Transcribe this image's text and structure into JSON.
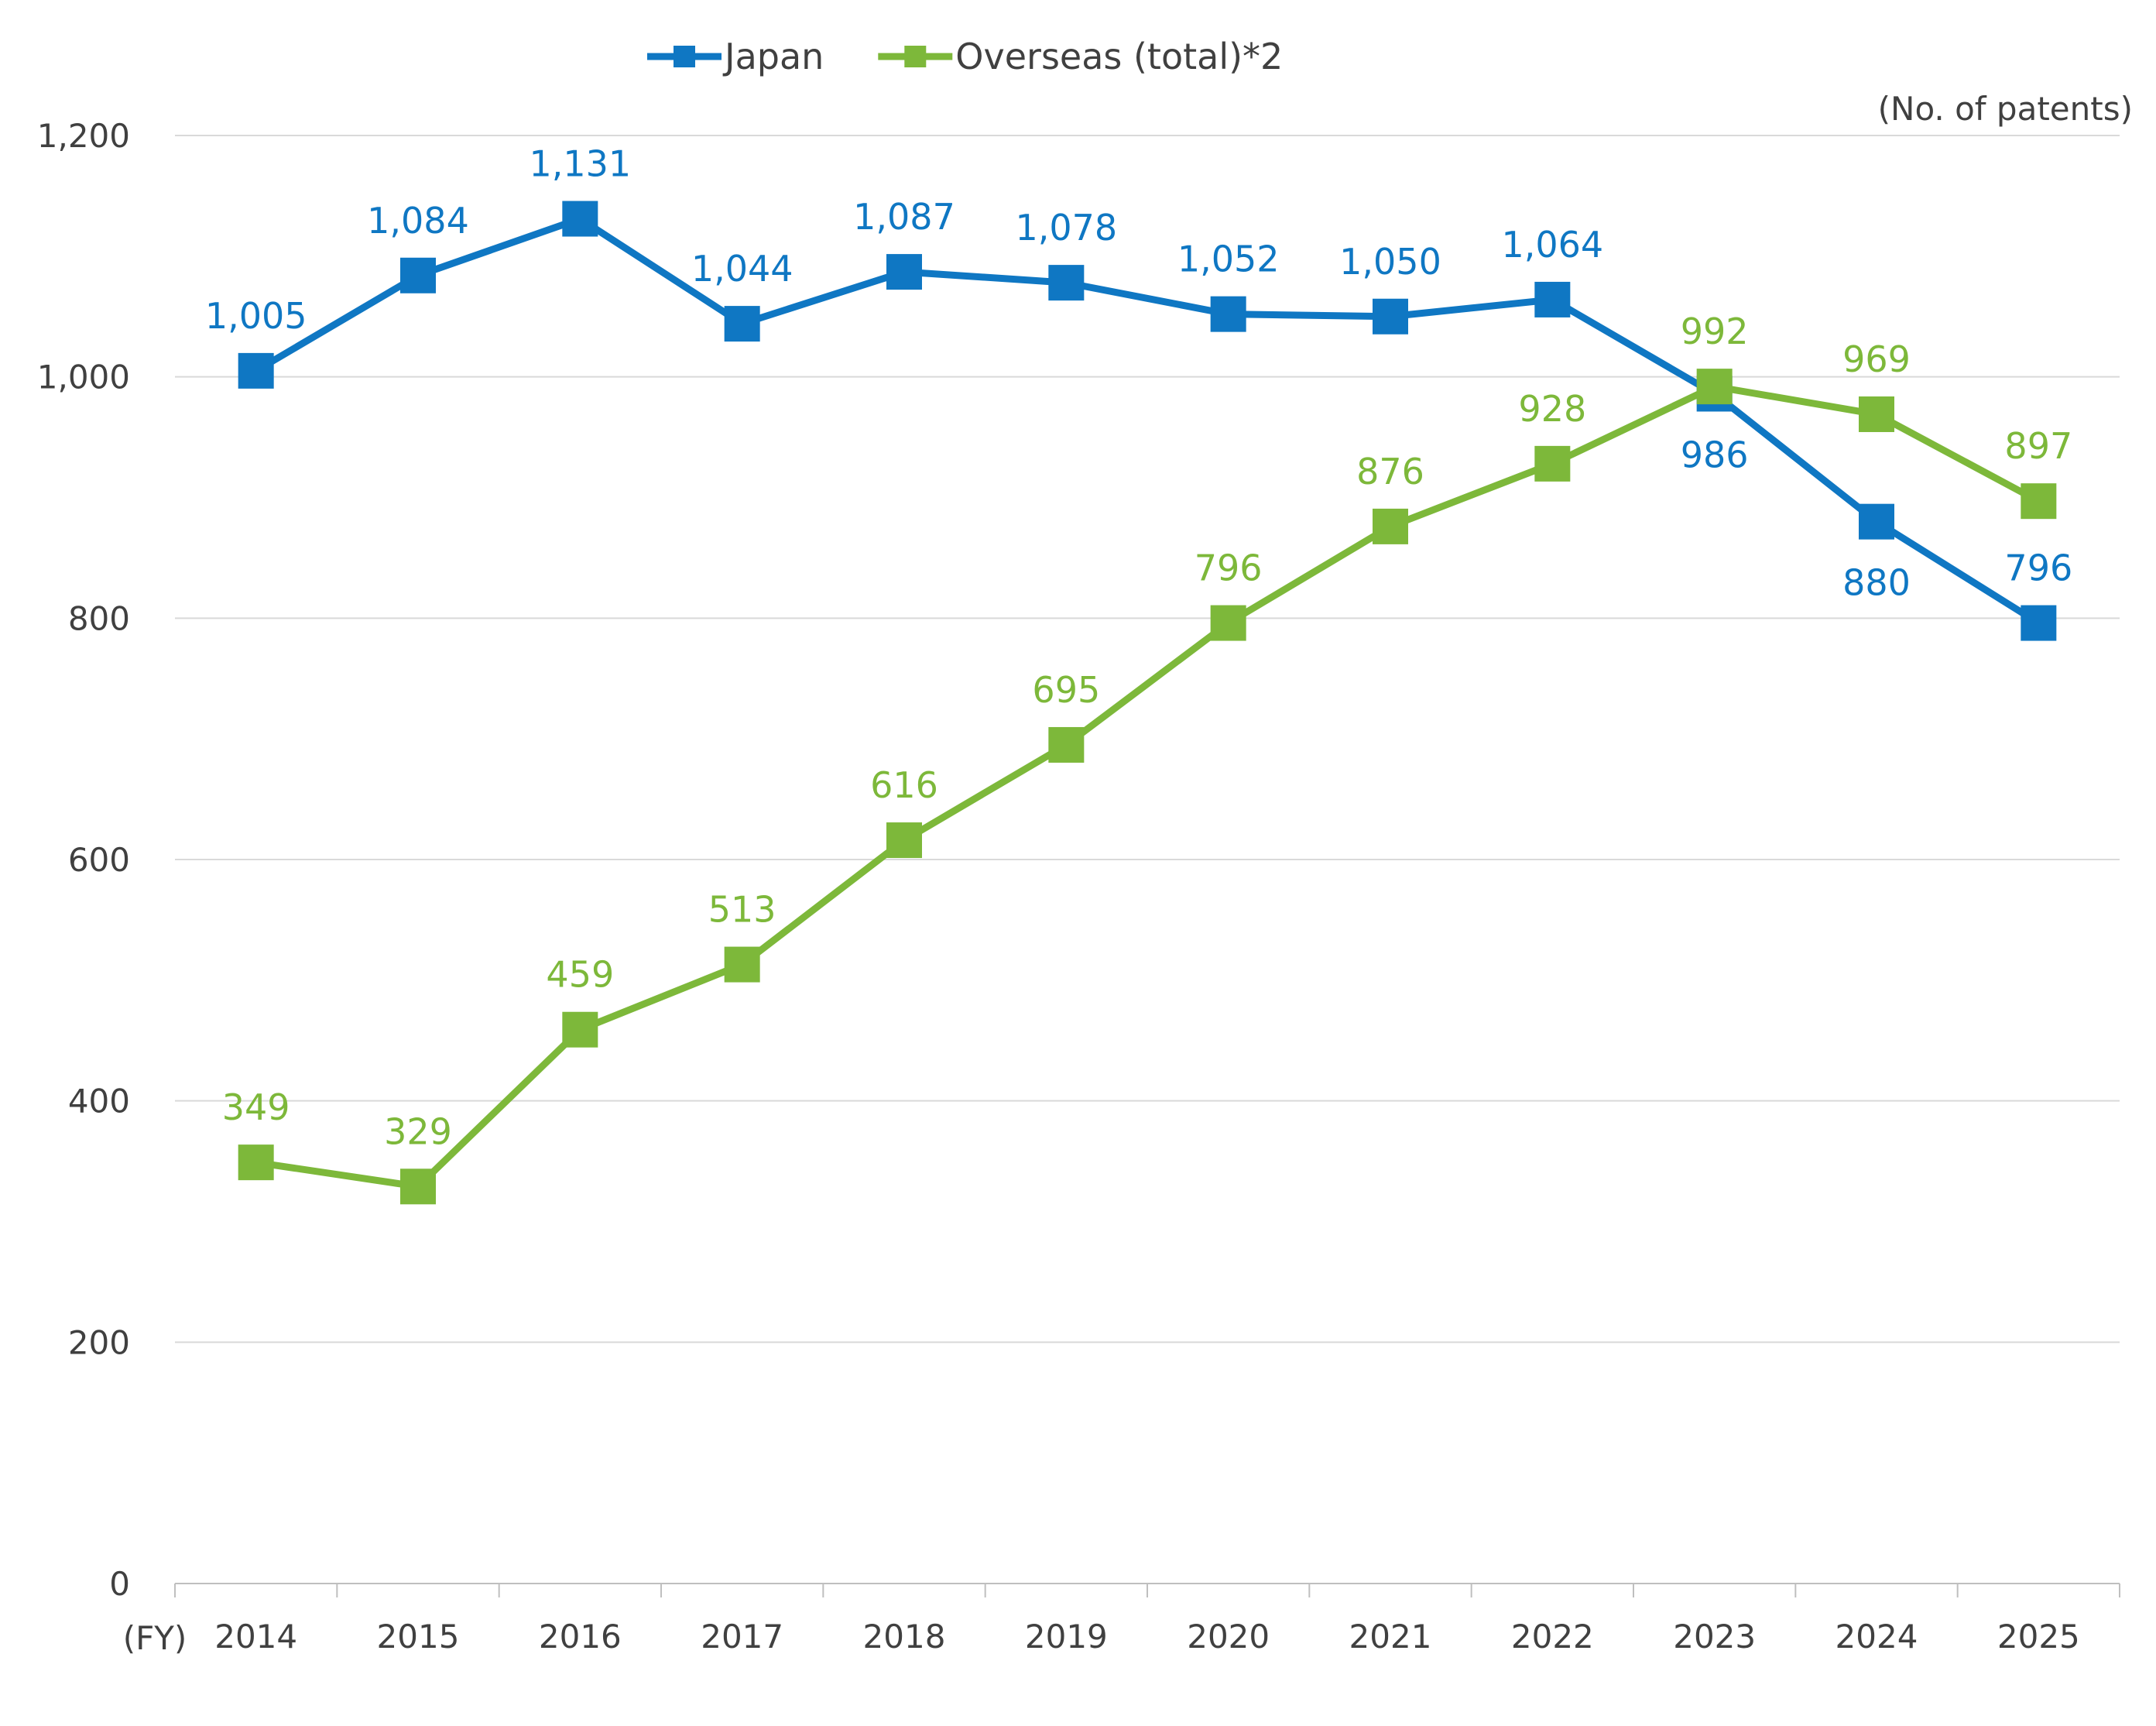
{
  "chart_data": {
    "type": "line",
    "title": "",
    "xlabel": "(FY)",
    "ylabel": "",
    "unit_label": "(No. of patents)",
    "categories": [
      "2014",
      "2015",
      "2016",
      "2017",
      "2018",
      "2019",
      "2020",
      "2021",
      "2022",
      "2023",
      "2024",
      "2025"
    ],
    "ylim": [
      0,
      1200
    ],
    "yticks": [
      0,
      200,
      400,
      600,
      800,
      1000,
      1200
    ],
    "ytick_labels": [
      "0",
      "200",
      "400",
      "600",
      "800",
      "1,000",
      "1,200"
    ],
    "grid": true,
    "legend_position": "top",
    "series": [
      {
        "name": "Japan",
        "color": "#0F77C3",
        "marker": "square",
        "values": [
          1005,
          1084,
          1131,
          1044,
          1087,
          1078,
          1052,
          1050,
          1064,
          986,
          880,
          796
        ],
        "labels": [
          "1,005",
          "1,084",
          "1,131",
          "1,044",
          "1,087",
          "1,078",
          "1,052",
          "1,050",
          "1,064",
          "986",
          "880",
          "796"
        ],
        "label_positions": [
          "above",
          "above",
          "above",
          "above",
          "above",
          "above",
          "above",
          "above",
          "above",
          "below",
          "below",
          "above"
        ]
      },
      {
        "name": "Overseas (total)*2",
        "color": "#7DB83A",
        "marker": "square",
        "values": [
          349,
          329,
          459,
          513,
          616,
          695,
          796,
          876,
          928,
          992,
          969,
          897
        ],
        "labels": [
          "349",
          "329",
          "459",
          "513",
          "616",
          "695",
          "796",
          "876",
          "928",
          "992",
          "969",
          "897"
        ],
        "label_positions": [
          "above",
          "above",
          "above",
          "above",
          "above",
          "above",
          "above",
          "above",
          "above",
          "above",
          "above",
          "above"
        ]
      }
    ]
  },
  "colors": {
    "axis": "#BFBFBF",
    "gridline": "#D9D9D9",
    "tick_text": "#404040"
  }
}
